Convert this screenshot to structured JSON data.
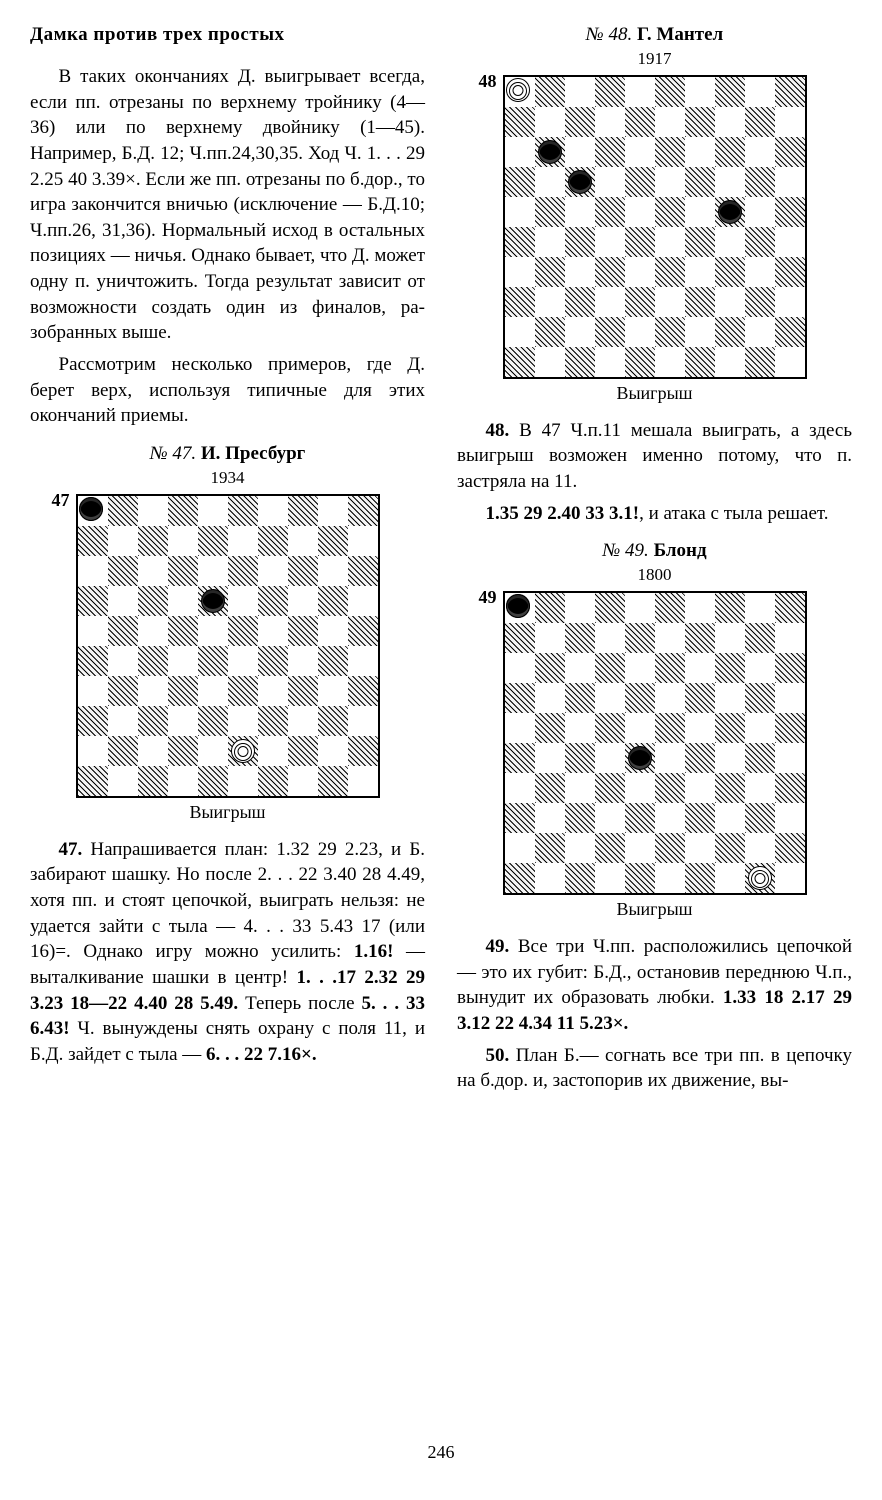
{
  "page_number": "246",
  "section_title": "Дамка против трех простых",
  "para1": "В таких окончаниях Д. вы­игрывает всегда, если пп. от­резаны по верхнему тройнику (4—36) или по верхнему двой­нику (1—45). Например, Б.Д. 12; Ч.пп.24,30,35. Ход Ч. 1. . . 29 2.25 40 3.39×. Если же пп. отрезаны по б.дор., то игра закончится вничью (ис­ключение — Б.Д.10; Ч.пп.26, 31,36). Нормальный исход в остальных позициях — ничья. Однако бывает, что Д. может одну п. уничтожить. Тогда ре­зультат зависит от возможности создать один из финалов, ра­зобранных выше.",
  "para2": "Рассмотрим несколько при­меров, где Д. берет верх, ис­пользуя типичные для этих окончаний приемы.",
  "diagrams": [
    {
      "label": "47",
      "num_prefix": "№ 47.",
      "author": "И. Пресбург",
      "year": "1934",
      "caption": "Выигрыш",
      "pieces": [
        {
          "row": 2,
          "col": 2,
          "type": "black-man"
        },
        {
          "row": 3,
          "col": 4,
          "type": "black-man"
        },
        {
          "row": 4,
          "col": 4,
          "type": "black-man"
        },
        {
          "row": 8,
          "col": 5,
          "type": "white-king"
        }
      ]
    },
    {
      "label": "48",
      "num_prefix": "№ 48.",
      "author": "Г. Мантел",
      "year": "1917",
      "caption": "Выигрыш",
      "pieces": [
        {
          "row": 2,
          "col": 1,
          "type": "black-man"
        },
        {
          "row": 3,
          "col": 2,
          "type": "black-man"
        },
        {
          "row": 4,
          "col": 7,
          "type": "black-man"
        },
        {
          "row": 9,
          "col": 5,
          "type": "white-king"
        }
      ]
    },
    {
      "label": "49",
      "num_prefix": "№ 49.",
      "author": "Блонд",
      "year": "1800",
      "caption": "Выигрыш",
      "pieces": [
        {
          "row": 2,
          "col": 2,
          "type": "black-man"
        },
        {
          "row": 3,
          "col": 3,
          "type": "black-man"
        },
        {
          "row": 5,
          "col": 4,
          "type": "black-man"
        },
        {
          "row": 9,
          "col": 8,
          "type": "white-king"
        }
      ]
    }
  ],
  "para47_a": "Напрашивается план: 1.32 29 2.23, и Б. забирают шашку. Но после 2. . . 22 3.40 28 4.49, хотя пп. и стоят це­почкой, выиграть нельзя: не удается зайти с тыла — 4. . . 33 5.43 17 (или 16)=. Однако игру можно усилить: ",
  "para47_bold1": "1.16!",
  "para47_b": " — выталкивание шашки в центр! ",
  "para47_bold2": "1. . .17 2.32 29 3.23 18—22 4.40 28 5.49.",
  "para47_c": " Теперь после ",
  "para47_cont_bold1": "5. . . 33 6.43!",
  "para47_cont_a": " Ч. вынуждены снять охрану с поля 11, и Б.Д. зайдет с тыла — ",
  "para47_cont_bold2": "6. . . 22 7.16×.",
  "para48_a": "В 47 Ч.п.11 мешала вы­играть, а здесь выигрыш воз­можен именно потому, что п. застряла на 11.",
  "para48_b_bold": "1.35 29 2.40 33 3.1!",
  "para48_b_rest": ", и атака с тыла решает.",
  "para49_a": "Все три Ч.пп. располо­жились цепочкой — это их губит: Б.Д., остановив перед­нюю Ч.п., вынудит их образо­вать любки. ",
  "para49_bold": "1.33 18 2.17 29 3.12 22 4.34 11 5.23×.",
  "para50": "План Б.— согнать все три пп. в цепочку на б.дор. и, застопорив их движение, вы-"
}
